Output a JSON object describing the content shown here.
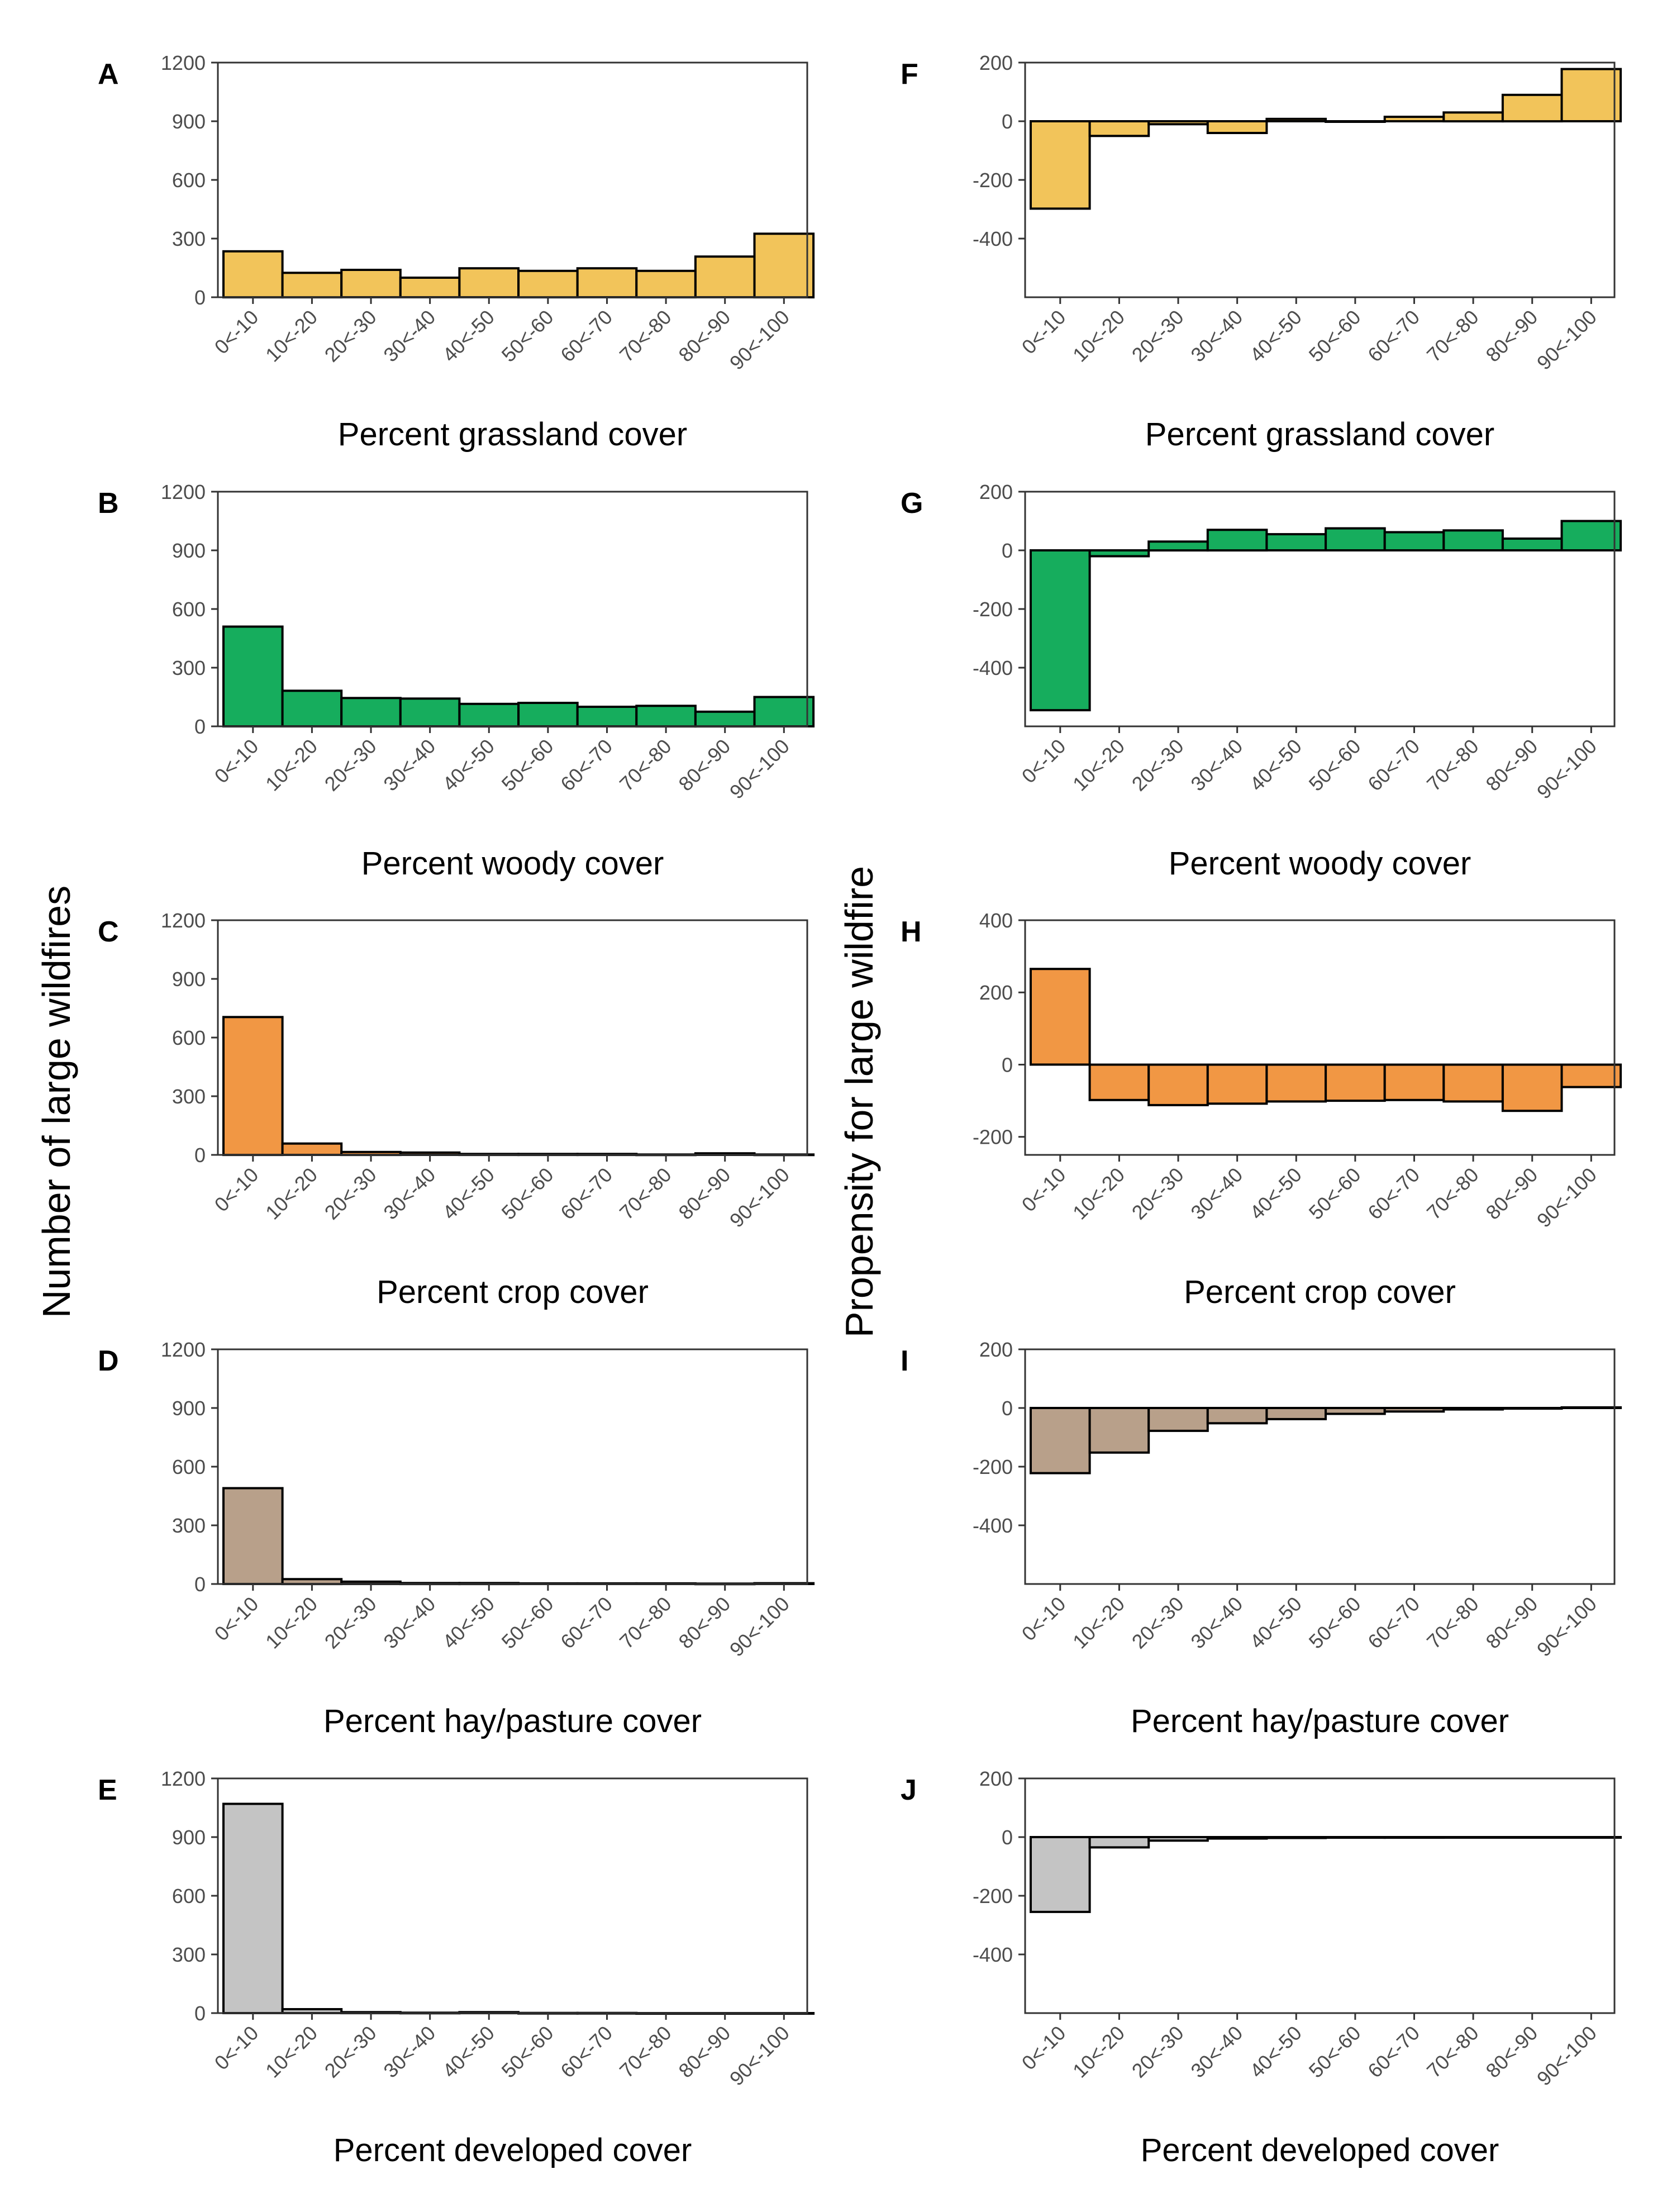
{
  "y_label_left": "Number of large wildfires",
  "y_label_right": "Propensity for large wildfire",
  "colors": {
    "grassland": "#f2c45a",
    "woody": "#16ad5d",
    "crop": "#f19744",
    "hay_pasture": "#b8a08a",
    "developed": "#c4c4c4",
    "bar_stroke": "#000000",
    "axis": "#333333"
  },
  "chart_data": [
    {
      "panel": "A",
      "type": "bar",
      "xlabel": "Percent grassland cover",
      "color_key": "grassland",
      "categories": [
        "0<-10",
        "10<-20",
        "20<-30",
        "30<-40",
        "40<-50",
        "50<-60",
        "60<-70",
        "70<-80",
        "80<-90",
        "90<-100"
      ],
      "values": [
        235,
        125,
        140,
        100,
        148,
        135,
        148,
        135,
        208,
        325
      ],
      "ylim": [
        0,
        1200
      ],
      "yticks": [
        0,
        300,
        600,
        900,
        1200
      ]
    },
    {
      "panel": "B",
      "type": "bar",
      "xlabel": "Percent woody cover",
      "color_key": "woody",
      "categories": [
        "0<-10",
        "10<-20",
        "20<-30",
        "30<-40",
        "40<-50",
        "50<-60",
        "60<-70",
        "70<-80",
        "80<-90",
        "90<-100"
      ],
      "values": [
        510,
        182,
        145,
        142,
        115,
        120,
        100,
        105,
        75,
        150
      ],
      "ylim": [
        0,
        1200
      ],
      "yticks": [
        0,
        300,
        600,
        900,
        1200
      ]
    },
    {
      "panel": "C",
      "type": "bar",
      "xlabel": "Percent crop cover",
      "color_key": "crop",
      "categories": [
        "0<-10",
        "10<-20",
        "20<-30",
        "30<-40",
        "40<-50",
        "50<-60",
        "60<-70",
        "70<-80",
        "80<-90",
        "90<-100"
      ],
      "values": [
        705,
        58,
        15,
        12,
        5,
        5,
        5,
        2,
        8,
        2
      ],
      "ylim": [
        0,
        1200
      ],
      "yticks": [
        0,
        300,
        600,
        900,
        1200
      ]
    },
    {
      "panel": "D",
      "type": "bar",
      "xlabel": "Percent hay/pasture cover",
      "color_key": "hay_pasture",
      "categories": [
        "0<-10",
        "10<-20",
        "20<-30",
        "30<-40",
        "40<-50",
        "50<-60",
        "60<-70",
        "70<-80",
        "80<-90",
        "90<-100"
      ],
      "values": [
        490,
        25,
        12,
        5,
        5,
        3,
        3,
        3,
        2,
        4
      ],
      "ylim": [
        0,
        1200
      ],
      "yticks": [
        0,
        300,
        600,
        900,
        1200
      ]
    },
    {
      "panel": "E",
      "type": "bar",
      "xlabel": "Percent developed cover",
      "color_key": "developed",
      "categories": [
        "0<-10",
        "10<-20",
        "20<-30",
        "30<-40",
        "40<-50",
        "50<-60",
        "60<-70",
        "70<-80",
        "80<-90",
        "90<-100"
      ],
      "values": [
        1070,
        20,
        5,
        2,
        5,
        1,
        1,
        0,
        0,
        0
      ],
      "ylim": [
        0,
        1200
      ],
      "yticks": [
        0,
        300,
        600,
        900,
        1200
      ]
    },
    {
      "panel": "F",
      "type": "bar",
      "xlabel": "Percent grassland cover",
      "color_key": "grassland",
      "categories": [
        "0<-10",
        "10<-20",
        "20<-30",
        "30<-40",
        "40<-50",
        "50<-60",
        "60<-70",
        "70<-80",
        "80<-90",
        "90<-100"
      ],
      "values": [
        -298,
        -50,
        -10,
        -40,
        8,
        -2,
        15,
        30,
        90,
        178
      ],
      "ylim": [
        -600,
        200
      ],
      "yticks": [
        -400,
        -200,
        0,
        200
      ]
    },
    {
      "panel": "G",
      "type": "bar",
      "xlabel": "Percent woody cover",
      "color_key": "woody",
      "categories": [
        "0<-10",
        "10<-20",
        "20<-30",
        "30<-40",
        "40<-50",
        "50<-60",
        "60<-70",
        "70<-80",
        "80<-90",
        "90<-100"
      ],
      "values": [
        -545,
        -20,
        30,
        70,
        55,
        75,
        62,
        68,
        40,
        100
      ],
      "ylim": [
        -600,
        200
      ],
      "yticks": [
        -400,
        -200,
        0,
        200
      ]
    },
    {
      "panel": "H",
      "type": "bar",
      "xlabel": "Percent crop cover",
      "color_key": "crop",
      "categories": [
        "0<-10",
        "10<-20",
        "20<-30",
        "30<-40",
        "40<-50",
        "50<-60",
        "60<-70",
        "70<-80",
        "80<-90",
        "90<-100"
      ],
      "values": [
        265,
        -98,
        -112,
        -108,
        -102,
        -100,
        -98,
        -102,
        -128,
        -62
      ],
      "ylim": [
        -250,
        400
      ],
      "yticks": [
        -200,
        0,
        200,
        400
      ]
    },
    {
      "panel": "I",
      "type": "bar",
      "xlabel": "Percent hay/pasture cover",
      "color_key": "hay_pasture",
      "categories": [
        "0<-10",
        "10<-20",
        "20<-30",
        "30<-40",
        "40<-50",
        "50<-60",
        "60<-70",
        "70<-80",
        "80<-90",
        "90<-100"
      ],
      "values": [
        -222,
        -152,
        -78,
        -52,
        -38,
        -20,
        -12,
        -5,
        -2,
        2
      ],
      "ylim": [
        -600,
        200
      ],
      "yticks": [
        -400,
        -200,
        0,
        200
      ]
    },
    {
      "panel": "J",
      "type": "bar",
      "xlabel": "Percent developed cover",
      "color_key": "developed",
      "categories": [
        "0<-10",
        "10<-20",
        "20<-30",
        "30<-40",
        "40<-50",
        "50<-60",
        "60<-70",
        "70<-80",
        "80<-90",
        "90<-100"
      ],
      "values": [
        -255,
        -35,
        -12,
        -5,
        -3,
        -2,
        -2,
        -1,
        -1,
        -1
      ],
      "ylim": [
        -600,
        200
      ],
      "yticks": [
        -400,
        -200,
        0,
        200
      ]
    }
  ]
}
